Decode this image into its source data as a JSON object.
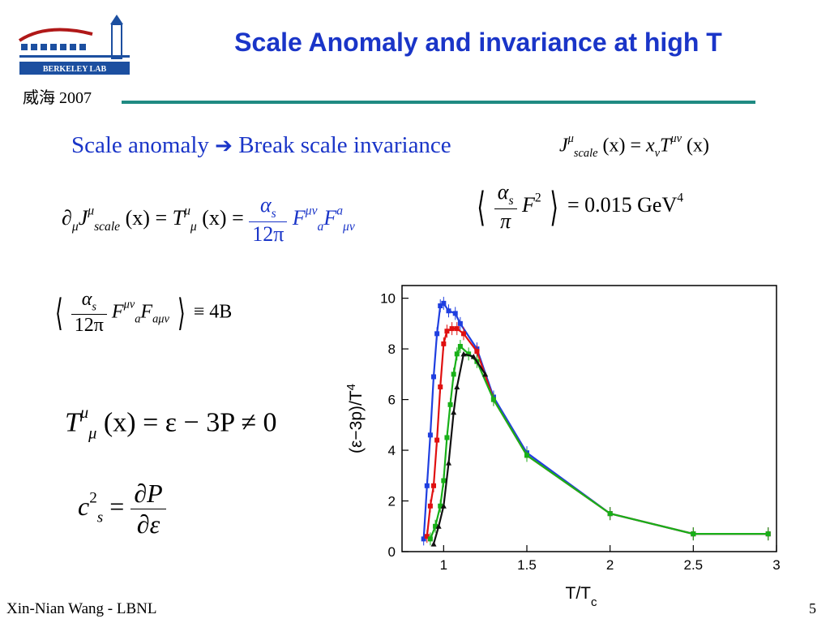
{
  "header": {
    "logo_text": "BERKELEY LAB",
    "meta": "威海 2007",
    "title": "Scale Anomaly and invariance at high T"
  },
  "subtitle": {
    "left": "Scale anomaly",
    "arrow": "➔",
    "right": "Break scale invariance"
  },
  "equations": {
    "current": {
      "J": "J",
      "mu": "μ",
      "scale": "scale",
      "x": "(x)",
      "eq": " = ",
      "xv": "x",
      "nu": "ν",
      "T": "T",
      "munu": "μν"
    },
    "divergence": {
      "partial": "∂",
      "mu": "μ",
      "J": "J",
      "scale": "scale",
      "x": "(x)",
      "eq": " = ",
      "T": "T",
      "alpha": "α",
      "s": "s",
      "den": "12π",
      "F": "F",
      "a": "a",
      "munu": "μν"
    },
    "condensate": {
      "alpha": "α",
      "s": "s",
      "pi": "π",
      "F": "F",
      "two": "2",
      "rhs": "= 0.015 GeV",
      "four": "4"
    },
    "bag": {
      "alpha": "α",
      "s": "s",
      "den": "12π",
      "F": "F",
      "a": "a",
      "munu": "μν",
      "amunu": "aμν",
      "rhs": "≡ 4B"
    },
    "trace": {
      "T": "T",
      "mu": "μ",
      "rhs": "(x) = ε − 3P ≠ 0"
    },
    "sound": {
      "c": "c",
      "two": "2",
      "s": "s",
      "eq": " = ",
      "num": "∂P",
      "den": "∂ε"
    }
  },
  "footer": {
    "author": "Xin-Nian Wang - LBNL",
    "page": "5"
  },
  "chart_data": {
    "type": "line",
    "xlabel": "T/T",
    "xlabel_sub": "c",
    "ylabel": "(ε−3p)/T",
    "ylabel_sup": "4",
    "xlim": [
      0.75,
      3.0
    ],
    "ylim": [
      0,
      10.5
    ],
    "x_ticks": [
      1,
      1.5,
      2,
      2.5,
      3
    ],
    "x_tick_labels": [
      "1",
      "1.5",
      "2",
      "2.5",
      "3"
    ],
    "y_ticks": [
      0,
      2,
      4,
      6,
      8,
      10
    ],
    "y_tick_labels": [
      "0",
      "2",
      "4",
      "6",
      "8",
      "10"
    ],
    "series": [
      {
        "color": "#1f3fe0",
        "marker": "square",
        "points": [
          [
            0.88,
            0.5
          ],
          [
            0.9,
            2.6
          ],
          [
            0.92,
            4.6
          ],
          [
            0.94,
            6.9
          ],
          [
            0.96,
            8.6
          ],
          [
            0.98,
            9.7
          ],
          [
            1.0,
            9.8
          ],
          [
            1.03,
            9.5
          ],
          [
            1.07,
            9.4
          ],
          [
            1.1,
            9.0
          ],
          [
            1.2,
            8.0
          ],
          [
            1.3,
            6.1
          ],
          [
            1.5,
            3.9
          ],
          [
            2.0,
            1.5
          ],
          [
            2.5,
            0.7
          ],
          [
            2.95,
            0.7
          ]
        ]
      },
      {
        "color": "#e01010",
        "marker": "square",
        "points": [
          [
            0.9,
            0.6
          ],
          [
            0.92,
            1.8
          ],
          [
            0.94,
            2.6
          ],
          [
            0.96,
            4.4
          ],
          [
            0.98,
            6.5
          ],
          [
            1.0,
            8.2
          ],
          [
            1.02,
            8.7
          ],
          [
            1.05,
            8.8
          ],
          [
            1.08,
            8.8
          ],
          [
            1.12,
            8.6
          ],
          [
            1.2,
            7.9
          ],
          [
            1.3,
            6.0
          ],
          [
            1.5,
            3.8
          ],
          [
            2.0,
            1.5
          ],
          [
            2.5,
            0.7
          ],
          [
            2.95,
            0.7
          ]
        ]
      },
      {
        "color": "#18b018",
        "marker": "square",
        "points": [
          [
            0.92,
            0.5
          ],
          [
            0.95,
            1.0
          ],
          [
            0.98,
            1.8
          ],
          [
            1.0,
            2.8
          ],
          [
            1.02,
            4.5
          ],
          [
            1.04,
            5.8
          ],
          [
            1.06,
            7.0
          ],
          [
            1.08,
            7.8
          ],
          [
            1.1,
            8.1
          ],
          [
            1.15,
            7.8
          ],
          [
            1.2,
            7.5
          ],
          [
            1.3,
            6.0
          ],
          [
            1.5,
            3.8
          ],
          [
            2.0,
            1.5
          ],
          [
            2.5,
            0.7
          ],
          [
            2.95,
            0.7
          ]
        ]
      },
      {
        "color": "#111111",
        "marker": "triangle",
        "points": [
          [
            0.94,
            0.3
          ],
          [
            0.97,
            1.0
          ],
          [
            1.0,
            1.8
          ],
          [
            1.03,
            3.5
          ],
          [
            1.06,
            5.5
          ],
          [
            1.08,
            6.5
          ],
          [
            1.12,
            7.8
          ],
          [
            1.18,
            7.7
          ],
          [
            1.25,
            7.0
          ]
        ]
      }
    ]
  }
}
